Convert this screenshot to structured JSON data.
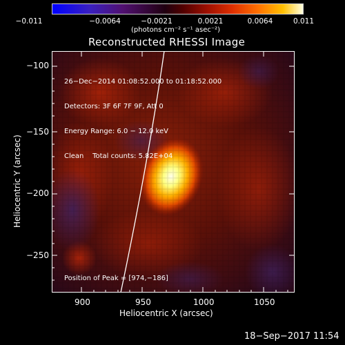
{
  "colorbar": {
    "ticks": [
      "−0.011",
      "−0.0064",
      "−0.0021",
      "0.0021",
      "0.0064",
      "0.011"
    ],
    "unit_label": "(photons cm⁻² s⁻¹ asec⁻²)"
  },
  "plot": {
    "title": "Reconstructed RHESSI Image",
    "xlabel": "Heliocentric X (arcsec)",
    "ylabel": "Heliocentric Y (arcsec)",
    "xticks": [
      "900",
      "950",
      "1000",
      "1050"
    ],
    "yticks": [
      "−100",
      "−150",
      "−200",
      "−250"
    ]
  },
  "info": {
    "time_range": "26−Dec−2014 01:08:52.000 to 01:18:52.000",
    "detectors": "Detectors: 3F 6F 7F 9F, Att 0",
    "energy": "Energy Range: 6.0 − 12.0 keV",
    "clean": "Clean    Total counts: 5.82E+04",
    "peak": "Position of Peak = [974,−186]"
  },
  "footer": {
    "timestamp": "18−Sep−2017 11:54"
  },
  "colors": {
    "background": "#000000",
    "limb_line": "#ffffff",
    "hot_core": "#ffffc0",
    "warm": "#e05010",
    "cool": "#4a1848"
  }
}
